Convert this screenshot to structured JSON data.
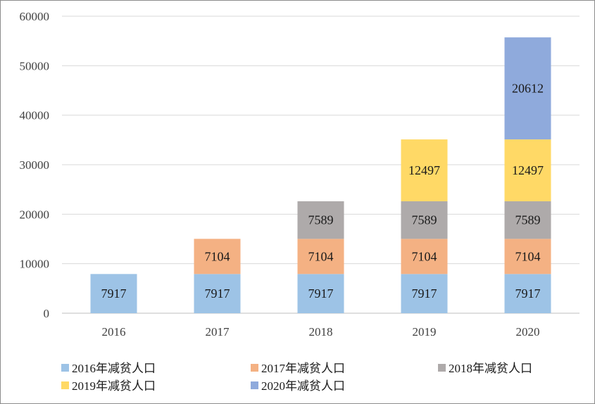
{
  "chart_data": {
    "type": "bar",
    "stacked": true,
    "categories": [
      "2016",
      "2017",
      "2018",
      "2019",
      "2020"
    ],
    "series": [
      {
        "name": "2016年减贫人口",
        "color": "#9dc3e6",
        "values": [
          7917,
          7917,
          7917,
          7917,
          7917
        ]
      },
      {
        "name": "2017年减贫人口",
        "color": "#f4b183",
        "values": [
          null,
          7104,
          7104,
          7104,
          7104
        ]
      },
      {
        "name": "2018年减贫人口",
        "color": "#aeaaaa",
        "values": [
          null,
          null,
          7589,
          7589,
          7589
        ]
      },
      {
        "name": "2019年减贫人口",
        "color": "#ffd966",
        "values": [
          null,
          null,
          null,
          12497,
          12497
        ]
      },
      {
        "name": "2020年减贫人口",
        "color": "#8faadc",
        "values": [
          null,
          null,
          null,
          null,
          20612
        ]
      }
    ],
    "y_ticks": [
      0,
      10000,
      20000,
      30000,
      40000,
      50000,
      60000
    ],
    "ylim": [
      0,
      60000
    ],
    "title": "",
    "xlabel": "",
    "ylabel": "",
    "grid": true,
    "legend_position": "bottom"
  }
}
